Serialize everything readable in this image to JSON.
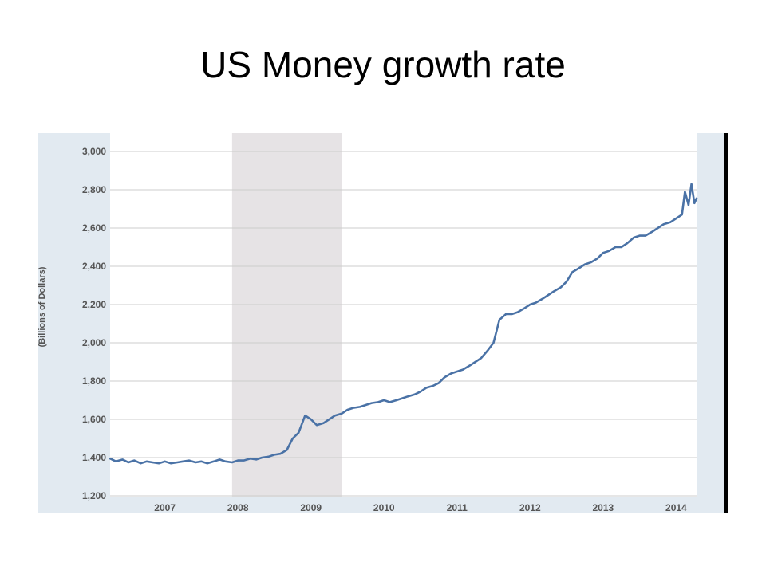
{
  "slide": {
    "title": "US Money growth rate"
  },
  "chart_data": {
    "type": "line",
    "title": "US Money growth rate",
    "ylabel": "(Billions of Dollars)",
    "xlabel": "",
    "ylim": [
      1200,
      3000
    ],
    "xlim": [
      2006.25,
      2014.28
    ],
    "y_ticks": [
      1200,
      1400,
      1600,
      1800,
      2000,
      2200,
      2400,
      2600,
      2800,
      3000
    ],
    "y_tick_labels": [
      "1,200",
      "1,400",
      "1,600",
      "1,800",
      "2,000",
      "2,200",
      "2,400",
      "2,600",
      "2,800",
      "3,000"
    ],
    "x_ticks": [
      2007,
      2008,
      2009,
      2010,
      2011,
      2012,
      2013,
      2014
    ],
    "x_tick_labels": [
      "2007",
      "2008",
      "2009",
      "2010",
      "2011",
      "2012",
      "2013",
      "2014"
    ],
    "recession_band": [
      2007.92,
      2009.42
    ],
    "grid": true,
    "colors": {
      "line": "#4a72a6",
      "recession": "#e6e3e5",
      "panel": "#e2eaf1",
      "grid": "#cccccc",
      "frame": "#000000"
    },
    "series": [
      {
        "x": [
          2006.25,
          2006.33,
          2006.42,
          2006.5,
          2006.58,
          2006.67,
          2006.75,
          2006.83,
          2006.92,
          2007.0,
          2007.08,
          2007.17,
          2007.25,
          2007.33,
          2007.42,
          2007.5,
          2007.58,
          2007.67,
          2007.75,
          2007.83,
          2007.92,
          2008.0,
          2008.08,
          2008.17,
          2008.25,
          2008.33,
          2008.42,
          2008.5,
          2008.58,
          2008.67,
          2008.75,
          2008.83,
          2008.92,
          2009.0,
          2009.08,
          2009.17,
          2009.25,
          2009.33,
          2009.42,
          2009.5,
          2009.58,
          2009.67,
          2009.75,
          2009.83,
          2009.92,
          2010.0,
          2010.08,
          2010.17,
          2010.25,
          2010.33,
          2010.42,
          2010.5,
          2010.58,
          2010.67,
          2010.75,
          2010.83,
          2010.92,
          2011.0,
          2011.08,
          2011.17,
          2011.25,
          2011.33,
          2011.42,
          2011.5,
          2011.58,
          2011.67,
          2011.75,
          2011.83,
          2011.92,
          2012.0,
          2012.08,
          2012.17,
          2012.25,
          2012.33,
          2012.42,
          2012.5,
          2012.58,
          2012.67,
          2012.75,
          2012.83,
          2012.92,
          2013.0,
          2013.08,
          2013.17,
          2013.25,
          2013.33,
          2013.42,
          2013.5,
          2013.58,
          2013.67,
          2013.75,
          2013.83,
          2013.92,
          2014.0,
          2014.08,
          2014.12,
          2014.17,
          2014.21,
          2014.25,
          2014.28
        ],
        "values": [
          1395,
          1380,
          1390,
          1375,
          1385,
          1370,
          1380,
          1375,
          1370,
          1380,
          1370,
          1375,
          1380,
          1385,
          1375,
          1380,
          1370,
          1380,
          1390,
          1380,
          1375,
          1385,
          1385,
          1395,
          1390,
          1400,
          1405,
          1415,
          1420,
          1440,
          1500,
          1530,
          1620,
          1600,
          1570,
          1580,
          1600,
          1620,
          1630,
          1650,
          1660,
          1665,
          1675,
          1685,
          1690,
          1700,
          1690,
          1700,
          1710,
          1720,
          1730,
          1745,
          1765,
          1775,
          1790,
          1820,
          1840,
          1850,
          1860,
          1880,
          1900,
          1920,
          1960,
          2000,
          2120,
          2150,
          2150,
          2160,
          2180,
          2200,
          2210,
          2230,
          2250,
          2270,
          2290,
          2320,
          2370,
          2390,
          2410,
          2420,
          2440,
          2470,
          2480,
          2500,
          2500,
          2520,
          2550,
          2560,
          2560,
          2580,
          2600,
          2620,
          2630,
          2650,
          2670,
          2790,
          2720,
          2830,
          2730,
          2755
        ]
      }
    ]
  }
}
